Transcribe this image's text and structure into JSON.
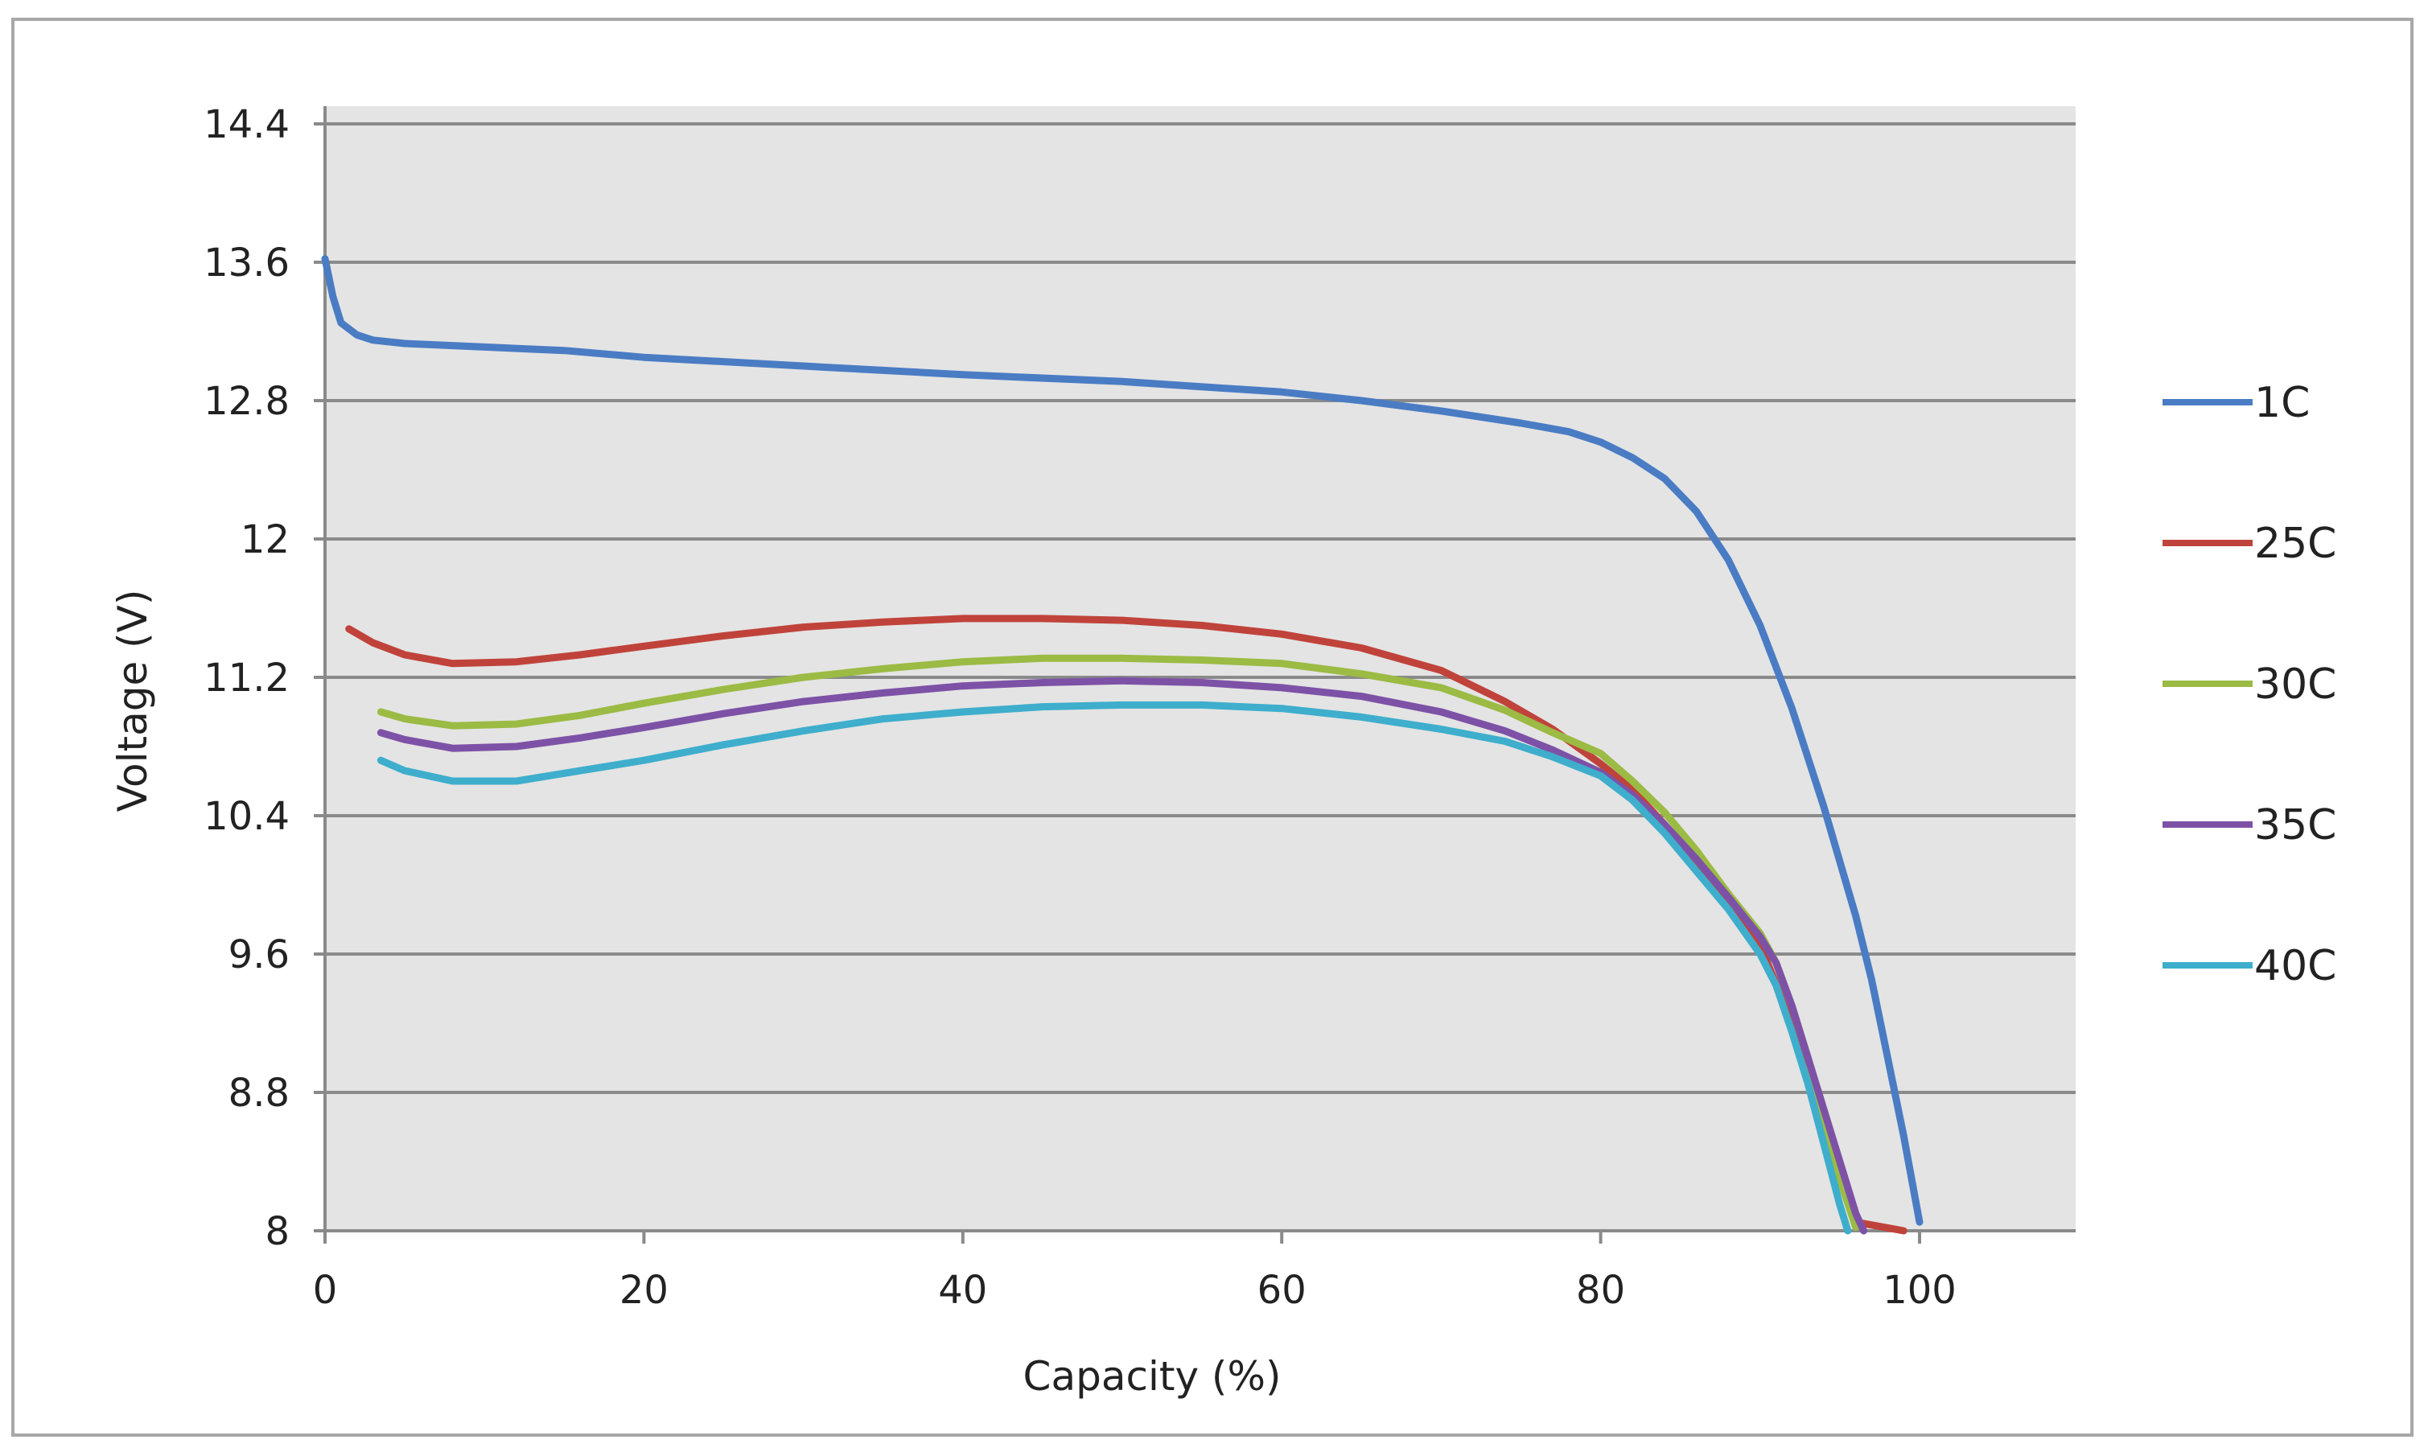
{
  "chart_data": {
    "type": "line",
    "title": "",
    "xlabel": "Capacity (%)",
    "ylabel": "Voltage (V)",
    "xlim": [
      0,
      110
    ],
    "ylim": [
      8,
      14.6
    ],
    "x_ticks": [
      0,
      20,
      40,
      60,
      80,
      100
    ],
    "x_tick_labels": [
      "0",
      "20",
      "40",
      "60",
      "80",
      "100"
    ],
    "y_ticks": [
      8,
      8.8,
      9.6,
      10.4,
      11.2,
      12,
      12.8,
      13.6,
      14.4
    ],
    "y_tick_labels": [
      "8",
      "8.8",
      "9.6",
      "10.4",
      "11.2",
      "12",
      "12.8",
      "13.6",
      "14.4"
    ],
    "grid": "horizontal",
    "legend_position": "right",
    "plot_background": "#e4e4e4",
    "series": [
      {
        "name": "1C",
        "color": "#4a7cc4",
        "points": [
          [
            0,
            13.62
          ],
          [
            0.5,
            13.4
          ],
          [
            1,
            13.25
          ],
          [
            2,
            13.18
          ],
          [
            3,
            13.15
          ],
          [
            5,
            13.13
          ],
          [
            10,
            13.11
          ],
          [
            15,
            13.09
          ],
          [
            20,
            13.05
          ],
          [
            30,
            13.0
          ],
          [
            40,
            12.95
          ],
          [
            50,
            12.91
          ],
          [
            60,
            12.85
          ],
          [
            65,
            12.8
          ],
          [
            70,
            12.74
          ],
          [
            75,
            12.67
          ],
          [
            78,
            12.62
          ],
          [
            80,
            12.56
          ],
          [
            82,
            12.47
          ],
          [
            84,
            12.35
          ],
          [
            86,
            12.16
          ],
          [
            88,
            11.88
          ],
          [
            90,
            11.5
          ],
          [
            92,
            11.02
          ],
          [
            94,
            10.45
          ],
          [
            96,
            9.82
          ],
          [
            97,
            9.45
          ],
          [
            98,
            9.0
          ],
          [
            99,
            8.55
          ],
          [
            100,
            8.05
          ]
        ]
      },
      {
        "name": "25C",
        "color": "#c0433b",
        "points": [
          [
            1.5,
            11.48
          ],
          [
            3,
            11.4
          ],
          [
            5,
            11.33
          ],
          [
            8,
            11.28
          ],
          [
            12,
            11.29
          ],
          [
            16,
            11.33
          ],
          [
            20,
            11.38
          ],
          [
            25,
            11.44
          ],
          [
            30,
            11.49
          ],
          [
            35,
            11.52
          ],
          [
            40,
            11.54
          ],
          [
            45,
            11.54
          ],
          [
            50,
            11.53
          ],
          [
            55,
            11.5
          ],
          [
            60,
            11.45
          ],
          [
            65,
            11.37
          ],
          [
            70,
            11.24
          ],
          [
            74,
            11.06
          ],
          [
            77,
            10.9
          ],
          [
            80,
            10.7
          ],
          [
            82,
            10.55
          ],
          [
            84,
            10.35
          ],
          [
            86,
            10.1
          ],
          [
            88,
            9.88
          ],
          [
            90,
            9.65
          ],
          [
            91,
            9.43
          ],
          [
            92,
            9.18
          ],
          [
            93,
            8.9
          ],
          [
            94,
            8.6
          ],
          [
            95,
            8.3
          ],
          [
            96,
            8.05
          ],
          [
            99,
            8.0
          ]
        ]
      },
      {
        "name": "30C",
        "color": "#9bbb44",
        "points": [
          [
            3.5,
            11.0
          ],
          [
            5,
            10.96
          ],
          [
            8,
            10.92
          ],
          [
            12,
            10.93
          ],
          [
            16,
            10.98
          ],
          [
            20,
            11.05
          ],
          [
            25,
            11.13
          ],
          [
            30,
            11.2
          ],
          [
            35,
            11.25
          ],
          [
            40,
            11.29
          ],
          [
            45,
            11.31
          ],
          [
            50,
            11.31
          ],
          [
            55,
            11.3
          ],
          [
            60,
            11.28
          ],
          [
            65,
            11.22
          ],
          [
            70,
            11.14
          ],
          [
            74,
            11.01
          ],
          [
            77,
            10.88
          ],
          [
            80,
            10.76
          ],
          [
            82,
            10.6
          ],
          [
            84,
            10.42
          ],
          [
            86,
            10.2
          ],
          [
            88,
            9.95
          ],
          [
            90,
            9.72
          ],
          [
            91,
            9.55
          ],
          [
            92,
            9.3
          ],
          [
            93,
            9.0
          ],
          [
            94,
            8.65
          ],
          [
            95,
            8.3
          ],
          [
            96,
            8.02
          ]
        ]
      },
      {
        "name": "35C",
        "color": "#7d52a6",
        "points": [
          [
            3.5,
            10.88
          ],
          [
            5,
            10.84
          ],
          [
            8,
            10.79
          ],
          [
            12,
            10.8
          ],
          [
            16,
            10.85
          ],
          [
            20,
            10.91
          ],
          [
            25,
            10.99
          ],
          [
            30,
            11.06
          ],
          [
            35,
            11.11
          ],
          [
            40,
            11.15
          ],
          [
            45,
            11.17
          ],
          [
            50,
            11.18
          ],
          [
            55,
            11.17
          ],
          [
            60,
            11.14
          ],
          [
            65,
            11.09
          ],
          [
            70,
            11.0
          ],
          [
            74,
            10.89
          ],
          [
            77,
            10.78
          ],
          [
            80,
            10.65
          ],
          [
            82,
            10.52
          ],
          [
            84,
            10.35
          ],
          [
            86,
            10.15
          ],
          [
            88,
            9.93
          ],
          [
            90,
            9.7
          ],
          [
            91,
            9.55
          ],
          [
            92,
            9.3
          ],
          [
            93,
            9.0
          ],
          [
            94,
            8.7
          ],
          [
            95,
            8.4
          ],
          [
            96,
            8.1
          ],
          [
            96.5,
            8.0
          ]
        ]
      },
      {
        "name": "40C",
        "color": "#3eaecc",
        "points": [
          [
            3.5,
            10.72
          ],
          [
            5,
            10.66
          ],
          [
            8,
            10.6
          ],
          [
            12,
            10.6
          ],
          [
            16,
            10.66
          ],
          [
            20,
            10.72
          ],
          [
            25,
            10.81
          ],
          [
            30,
            10.89
          ],
          [
            35,
            10.96
          ],
          [
            40,
            11.0
          ],
          [
            45,
            11.03
          ],
          [
            50,
            11.04
          ],
          [
            55,
            11.04
          ],
          [
            60,
            11.02
          ],
          [
            65,
            10.97
          ],
          [
            70,
            10.9
          ],
          [
            74,
            10.83
          ],
          [
            77,
            10.74
          ],
          [
            80,
            10.63
          ],
          [
            82,
            10.49
          ],
          [
            84,
            10.3
          ],
          [
            86,
            10.08
          ],
          [
            88,
            9.86
          ],
          [
            90,
            9.6
          ],
          [
            91,
            9.42
          ],
          [
            92,
            9.15
          ],
          [
            93,
            8.85
          ],
          [
            94,
            8.5
          ],
          [
            95,
            8.15
          ],
          [
            95.5,
            8.0
          ]
        ]
      }
    ]
  }
}
